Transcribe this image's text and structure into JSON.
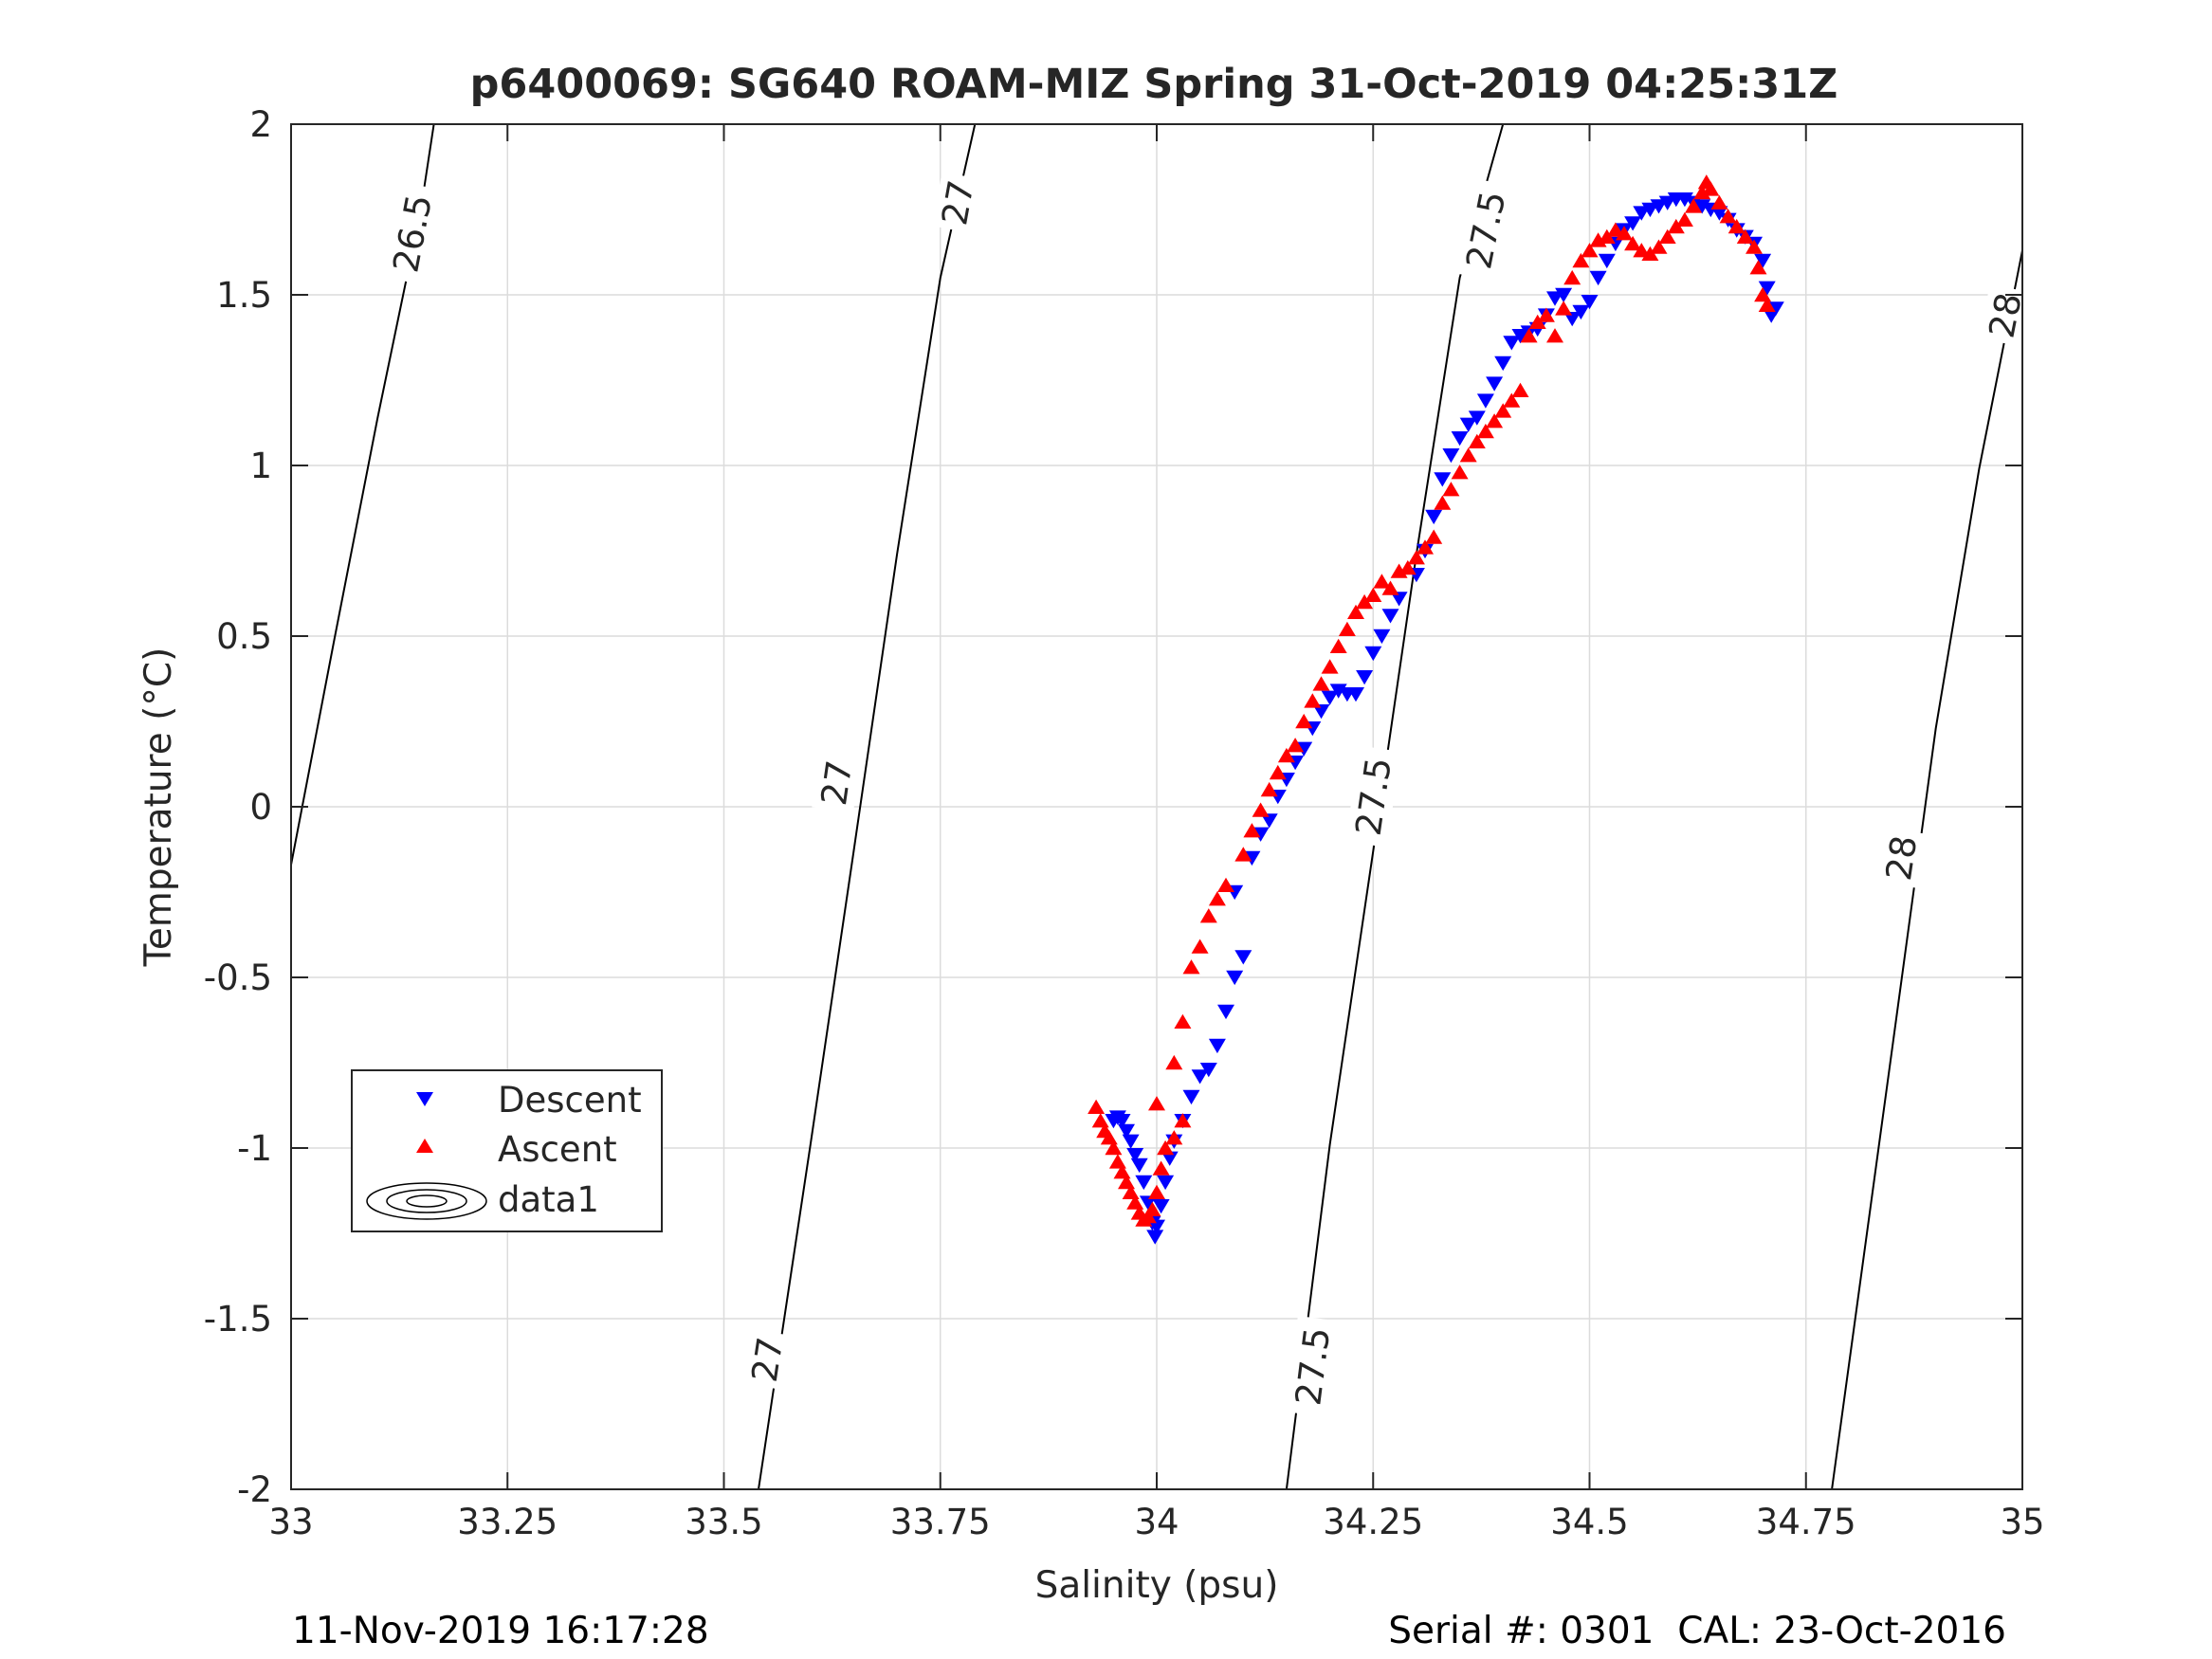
{
  "chart_data": {
    "type": "scatter",
    "title": "p6400069: SG640 ROAM-MIZ Spring 31-Oct-2019 04:25:31Z",
    "xlabel": "Salinity (psu)",
    "ylabel": "Temperature (°C)",
    "xlim": [
      33,
      35
    ],
    "ylim": [
      -2,
      2
    ],
    "xticks": [
      33,
      33.25,
      33.5,
      33.75,
      34,
      34.25,
      34.5,
      34.75,
      35
    ],
    "xtick_labels": [
      "33",
      "33.25",
      "33.5",
      "33.75",
      "34",
      "34.25",
      "34.5",
      "34.75",
      "35"
    ],
    "yticks": [
      -2,
      -1.5,
      -1,
      -0.5,
      0,
      0.5,
      1,
      1.5,
      2
    ],
    "ytick_labels": [
      "-2",
      "-1.5",
      "-1",
      "-0.5",
      "0",
      "0.5",
      "1",
      "1.5",
      "2"
    ],
    "grid": true,
    "legend_position": "lower-left",
    "legend": [
      "Descent",
      "Ascent",
      "data1"
    ],
    "colors": {
      "descent": "#0000ff",
      "ascent": "#ff0000",
      "contour": "#000000",
      "grid": "#dcdcdc",
      "axis": "#262626"
    },
    "series": [
      {
        "name": "Descent",
        "marker": "triangle-down",
        "color": "#0000ff",
        "points": [
          [
            33.95,
            -0.92
          ],
          [
            33.955,
            -0.91
          ],
          [
            33.96,
            -0.92
          ],
          [
            33.965,
            -0.95
          ],
          [
            33.97,
            -0.98
          ],
          [
            33.975,
            -1.02
          ],
          [
            33.98,
            -1.05
          ],
          [
            33.985,
            -1.1
          ],
          [
            33.99,
            -1.16
          ],
          [
            33.995,
            -1.22
          ],
          [
            33.998,
            -1.26
          ],
          [
            34.0,
            -1.23
          ],
          [
            34.005,
            -1.17
          ],
          [
            34.01,
            -1.1
          ],
          [
            34.015,
            -1.03
          ],
          [
            34.02,
            -0.98
          ],
          [
            34.03,
            -0.92
          ],
          [
            34.04,
            -0.85
          ],
          [
            34.05,
            -0.79
          ],
          [
            34.06,
            -0.77
          ],
          [
            34.07,
            -0.7
          ],
          [
            34.08,
            -0.6
          ],
          [
            34.09,
            -0.5
          ],
          [
            34.1,
            -0.44
          ],
          [
            34.09,
            -0.25
          ],
          [
            34.11,
            -0.15
          ],
          [
            34.12,
            -0.08
          ],
          [
            34.13,
            -0.04
          ],
          [
            34.14,
            0.03
          ],
          [
            34.15,
            0.08
          ],
          [
            34.16,
            0.13
          ],
          [
            34.17,
            0.17
          ],
          [
            34.18,
            0.23
          ],
          [
            34.19,
            0.28
          ],
          [
            34.2,
            0.32
          ],
          [
            34.21,
            0.34
          ],
          [
            34.22,
            0.33
          ],
          [
            34.23,
            0.33
          ],
          [
            34.24,
            0.38
          ],
          [
            34.25,
            0.45
          ],
          [
            34.26,
            0.5
          ],
          [
            34.27,
            0.56
          ],
          [
            34.28,
            0.61
          ],
          [
            34.3,
            0.68
          ],
          [
            34.31,
            0.75
          ],
          [
            34.32,
            0.85
          ],
          [
            34.33,
            0.96
          ],
          [
            34.34,
            1.03
          ],
          [
            34.35,
            1.08
          ],
          [
            34.36,
            1.12
          ],
          [
            34.37,
            1.14
          ],
          [
            34.38,
            1.19
          ],
          [
            34.39,
            1.24
          ],
          [
            34.4,
            1.3
          ],
          [
            34.41,
            1.36
          ],
          [
            34.42,
            1.38
          ],
          [
            34.43,
            1.39
          ],
          [
            34.44,
            1.4
          ],
          [
            34.45,
            1.44
          ],
          [
            34.46,
            1.49
          ],
          [
            34.47,
            1.5
          ],
          [
            34.48,
            1.43
          ],
          [
            34.49,
            1.45
          ],
          [
            34.5,
            1.48
          ],
          [
            34.51,
            1.55
          ],
          [
            34.52,
            1.6
          ],
          [
            34.53,
            1.65
          ],
          [
            34.54,
            1.69
          ],
          [
            34.55,
            1.71
          ],
          [
            34.56,
            1.74
          ],
          [
            34.57,
            1.75
          ],
          [
            34.58,
            1.76
          ],
          [
            34.59,
            1.77
          ],
          [
            34.6,
            1.78
          ],
          [
            34.61,
            1.78
          ],
          [
            34.62,
            1.77
          ],
          [
            34.63,
            1.76
          ],
          [
            34.64,
            1.75
          ],
          [
            34.65,
            1.74
          ],
          [
            34.66,
            1.72
          ],
          [
            34.67,
            1.69
          ],
          [
            34.68,
            1.67
          ],
          [
            34.69,
            1.65
          ],
          [
            34.7,
            1.6
          ],
          [
            34.705,
            1.52
          ],
          [
            34.71,
            1.44
          ],
          [
            34.715,
            1.46
          ]
        ]
      },
      {
        "name": "Ascent",
        "marker": "triangle-up",
        "color": "#ff0000",
        "points": [
          [
            33.93,
            -0.88
          ],
          [
            33.935,
            -0.92
          ],
          [
            33.94,
            -0.95
          ],
          [
            33.945,
            -0.97
          ],
          [
            33.95,
            -1.0
          ],
          [
            33.955,
            -1.04
          ],
          [
            33.96,
            -1.07
          ],
          [
            33.965,
            -1.1
          ],
          [
            33.97,
            -1.13
          ],
          [
            33.975,
            -1.16
          ],
          [
            33.98,
            -1.19
          ],
          [
            33.985,
            -1.21
          ],
          [
            33.99,
            -1.2
          ],
          [
            33.995,
            -1.18
          ],
          [
            34.0,
            -1.13
          ],
          [
            34.005,
            -1.06
          ],
          [
            34.01,
            -1.0
          ],
          [
            34.02,
            -0.97
          ],
          [
            34.03,
            -0.92
          ],
          [
            34.0,
            -0.87
          ],
          [
            34.02,
            -0.75
          ],
          [
            34.03,
            -0.63
          ],
          [
            34.04,
            -0.47
          ],
          [
            34.05,
            -0.41
          ],
          [
            34.06,
            -0.32
          ],
          [
            34.07,
            -0.27
          ],
          [
            34.08,
            -0.23
          ],
          [
            34.1,
            -0.14
          ],
          [
            34.11,
            -0.07
          ],
          [
            34.12,
            -0.01
          ],
          [
            34.13,
            0.05
          ],
          [
            34.14,
            0.1
          ],
          [
            34.15,
            0.15
          ],
          [
            34.16,
            0.18
          ],
          [
            34.17,
            0.25
          ],
          [
            34.18,
            0.31
          ],
          [
            34.19,
            0.36
          ],
          [
            34.2,
            0.41
          ],
          [
            34.21,
            0.47
          ],
          [
            34.22,
            0.52
          ],
          [
            34.23,
            0.57
          ],
          [
            34.24,
            0.6
          ],
          [
            34.25,
            0.62
          ],
          [
            34.26,
            0.66
          ],
          [
            34.27,
            0.64
          ],
          [
            34.28,
            0.69
          ],
          [
            34.29,
            0.7
          ],
          [
            34.3,
            0.73
          ],
          [
            34.31,
            0.76
          ],
          [
            34.32,
            0.79
          ],
          [
            34.33,
            0.89
          ],
          [
            34.34,
            0.93
          ],
          [
            34.35,
            0.98
          ],
          [
            34.36,
            1.03
          ],
          [
            34.37,
            1.07
          ],
          [
            34.38,
            1.1
          ],
          [
            34.39,
            1.13
          ],
          [
            34.4,
            1.16
          ],
          [
            34.41,
            1.19
          ],
          [
            34.42,
            1.22
          ],
          [
            34.43,
            1.38
          ],
          [
            34.44,
            1.42
          ],
          [
            34.45,
            1.44
          ],
          [
            34.46,
            1.38
          ],
          [
            34.47,
            1.46
          ],
          [
            34.48,
            1.55
          ],
          [
            34.49,
            1.6
          ],
          [
            34.5,
            1.63
          ],
          [
            34.51,
            1.66
          ],
          [
            34.52,
            1.67
          ],
          [
            34.53,
            1.69
          ],
          [
            34.54,
            1.68
          ],
          [
            34.55,
            1.65
          ],
          [
            34.56,
            1.63
          ],
          [
            34.57,
            1.62
          ],
          [
            34.58,
            1.64
          ],
          [
            34.59,
            1.67
          ],
          [
            34.6,
            1.7
          ],
          [
            34.61,
            1.72
          ],
          [
            34.62,
            1.76
          ],
          [
            34.63,
            1.8
          ],
          [
            34.635,
            1.83
          ],
          [
            34.64,
            1.81
          ],
          [
            34.65,
            1.77
          ],
          [
            34.66,
            1.73
          ],
          [
            34.67,
            1.7
          ],
          [
            34.68,
            1.67
          ],
          [
            34.69,
            1.64
          ],
          [
            34.695,
            1.58
          ],
          [
            34.7,
            1.5
          ],
          [
            34.705,
            1.47
          ]
        ]
      },
      {
        "name": "data1",
        "type": "contour",
        "color": "#000000",
        "lines": [
          {
            "level": "26.5",
            "points": [
              [
                33.0,
                -0.17
              ],
              [
                33.05,
                0.49
              ],
              [
                33.1,
                1.14
              ],
              [
                33.15,
                1.75
              ],
              [
                33.165,
                2.0
              ]
            ]
          },
          {
            "level": "27",
            "points": [
              [
                33.54,
                -2.0
              ],
              [
                33.6,
                -0.99
              ],
              [
                33.65,
                -0.13
              ],
              [
                33.7,
                0.74
              ],
              [
                33.75,
                1.55
              ],
              [
                33.79,
                2.0
              ]
            ]
          },
          {
            "level": "27.5",
            "points": [
              [
                34.15,
                -2.0
              ],
              [
                34.2,
                -0.99
              ],
              [
                34.25,
                -0.13
              ],
              [
                34.3,
                0.74
              ],
              [
                34.35,
                1.55
              ],
              [
                34.4,
                2.0
              ]
            ]
          },
          {
            "level": "28",
            "points": [
              [
                34.78,
                -2.0
              ],
              [
                34.85,
                -0.7
              ],
              [
                34.9,
                0.23
              ],
              [
                34.95,
                0.99
              ],
              [
                35.0,
                1.63
              ]
            ]
          }
        ],
        "labels": [
          {
            "text": "26.5",
            "x": 33.14,
            "y": 1.68
          },
          {
            "text": "27",
            "x": 33.77,
            "y": 1.77
          },
          {
            "text": "27",
            "x": 33.63,
            "y": 0.07
          },
          {
            "text": "27",
            "x": 33.55,
            "y": -1.62
          },
          {
            "text": "27.5",
            "x": 34.38,
            "y": 1.69
          },
          {
            "text": "27.5",
            "x": 34.25,
            "y": 0.03
          },
          {
            "text": "27.5",
            "x": 34.18,
            "y": -1.64
          },
          {
            "text": "28",
            "x": 34.98,
            "y": 1.44
          },
          {
            "text": "28",
            "x": 34.86,
            "y": -0.15
          }
        ]
      }
    ]
  },
  "footer": {
    "timestamp": "11-Nov-2019 16:17:28",
    "serial": "Serial #: 0301  CAL: 23-Oct-2016"
  }
}
